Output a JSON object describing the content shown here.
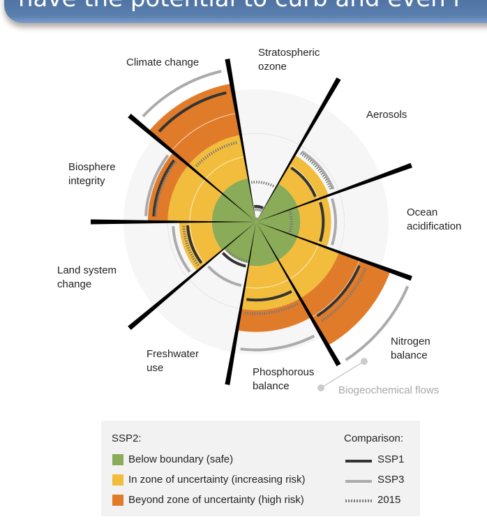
{
  "banner": {
    "text": "have the potential to curb and even r"
  },
  "chart_data": {
    "type": "radial-bar",
    "categories": [
      "Stratospheric ozone",
      "Aerosols",
      "Ocean acidification",
      "Nitrogen balance",
      "Phosphorous balance",
      "Freshwater use",
      "Land system change",
      "Biosphere integrity",
      "Climate change"
    ],
    "unit_note_boundary": 1,
    "zones": {
      "safe_max": 1,
      "uncertainty_max": 2
    },
    "series": [
      {
        "name": "SSP2",
        "style": "fill",
        "values": [
          0.1,
          1.75,
          1.7,
          3.24,
          2.5,
          0.95,
          1.74,
          2.45,
          3.18
        ]
      },
      {
        "name": "SSP1",
        "style": "dark-line",
        "values": [
          0.35,
          1.46,
          1.52,
          2.54,
          1.77,
          1.03,
          1.55,
          2.32,
          3.0
        ]
      },
      {
        "name": "SSP3",
        "style": "grey-line",
        "values": [
          0.28,
          1.9,
          1.8,
          3.73,
          2.9,
          1.48,
          1.88,
          2.5,
          3.5
        ]
      },
      {
        "name": "2015",
        "style": "dotted-line",
        "values": [
          0.9,
          1.85,
          0.8,
          2.69,
          2.08,
          0.92,
          1.64,
          2.28,
          1.85
        ]
      }
    ],
    "group_annotation": "Biogeochemical flows",
    "colors": {
      "safe": "#8aab58",
      "uncertainty": "#f2bd3c",
      "high_risk": "#e07b2a",
      "ssp1": "#333333",
      "ssp3": "#ababab",
      "y2015": "#777777"
    }
  },
  "legend": {
    "title": "SSP2:",
    "items": [
      "Below boundary (safe)",
      "In zone of uncertainty (increasing risk)",
      "Beyond zone of uncertainty (high risk)"
    ],
    "comparison_title": "Comparison:",
    "comparison": [
      "SSP1",
      "SSP3",
      "2015"
    ]
  }
}
